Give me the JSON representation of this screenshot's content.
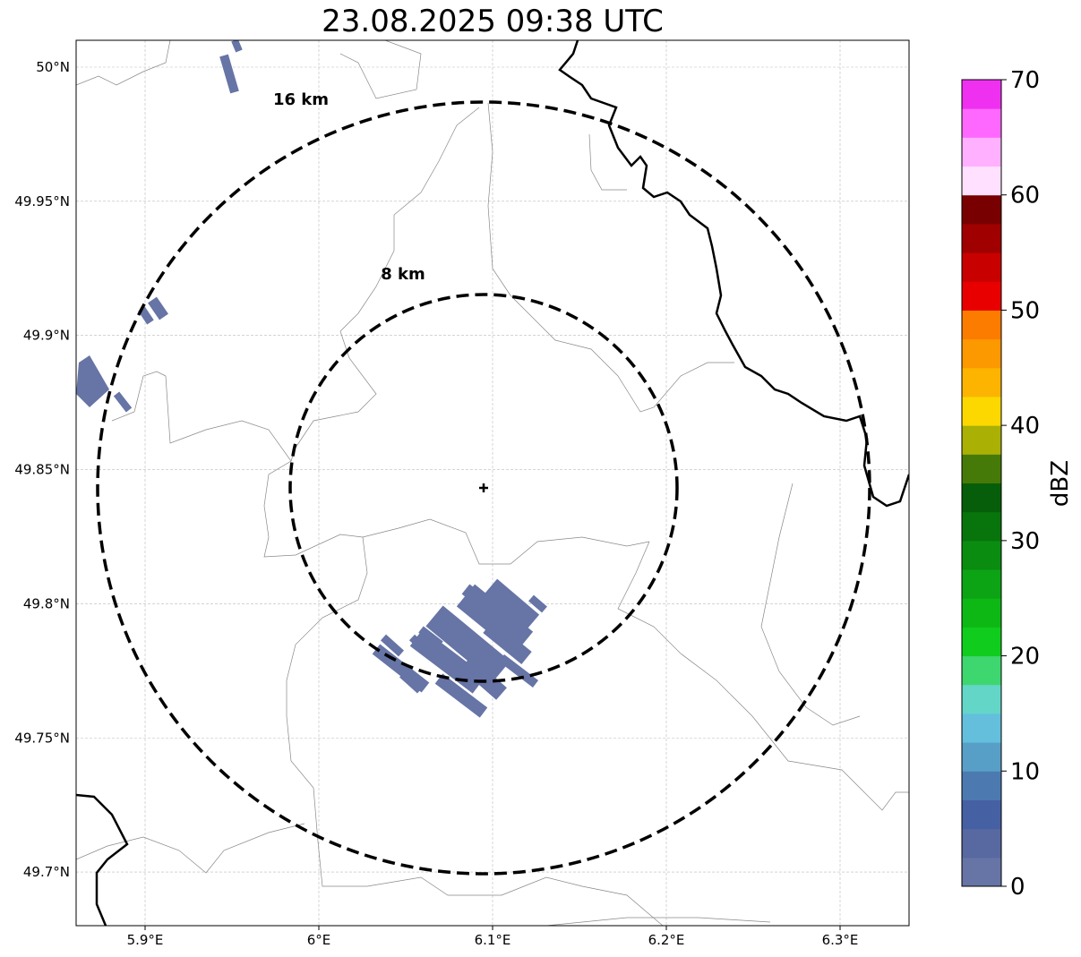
{
  "title": "23.08.2025 09:38 UTC",
  "rings": [
    {
      "label": "16 km",
      "radius_km": 16
    },
    {
      "label": "8 km",
      "radius_km": 8
    }
  ],
  "center": {
    "lon": 6.095,
    "lat": 49.843
  },
  "map": {
    "lon_range": [
      5.86,
      6.34
    ],
    "lat_range": [
      49.68,
      50.01
    ],
    "xticks": [
      {
        "v": 5.9,
        "label": "5.9°E"
      },
      {
        "v": 6.0,
        "label": "6°E"
      },
      {
        "v": 6.1,
        "label": "6.1°E"
      },
      {
        "v": 6.2,
        "label": "6.2°E"
      },
      {
        "v": 6.3,
        "label": "6.3°E"
      }
    ],
    "yticks": [
      {
        "v": 50.0,
        "label": "50°N"
      },
      {
        "v": 49.95,
        "label": "49.95°N"
      },
      {
        "v": 49.9,
        "label": "49.9°N"
      },
      {
        "v": 49.85,
        "label": "49.85°N"
      },
      {
        "v": 49.8,
        "label": "49.8°N"
      },
      {
        "v": 49.75,
        "label": "49.75°N"
      },
      {
        "v": 49.7,
        "label": "49.7°N"
      }
    ]
  },
  "colorbar": {
    "label": "dBZ",
    "min": 0,
    "max": 70,
    "ticks": [
      "0",
      "10",
      "20",
      "30",
      "40",
      "50",
      "60",
      "70"
    ],
    "colors": [
      "#6674a6",
      "#5868a0",
      "#4660a4",
      "#4c7ab0",
      "#589fc8",
      "#63bfdc",
      "#63d6c8",
      "#3ed66e",
      "#10cc1c",
      "#0eb814",
      "#0ca414",
      "#0a8c10",
      "#08740c",
      "#065e0a",
      "#467a08",
      "#aab004",
      "#fcd800",
      "#fcb400",
      "#fc9800",
      "#fc7c00",
      "#e80000",
      "#c80000",
      "#a00000",
      "#780000",
      "#ffe0ff",
      "#ffb0ff",
      "#ff68ff",
      "#f030f0"
    ]
  },
  "echo_color": "#6674a6"
}
